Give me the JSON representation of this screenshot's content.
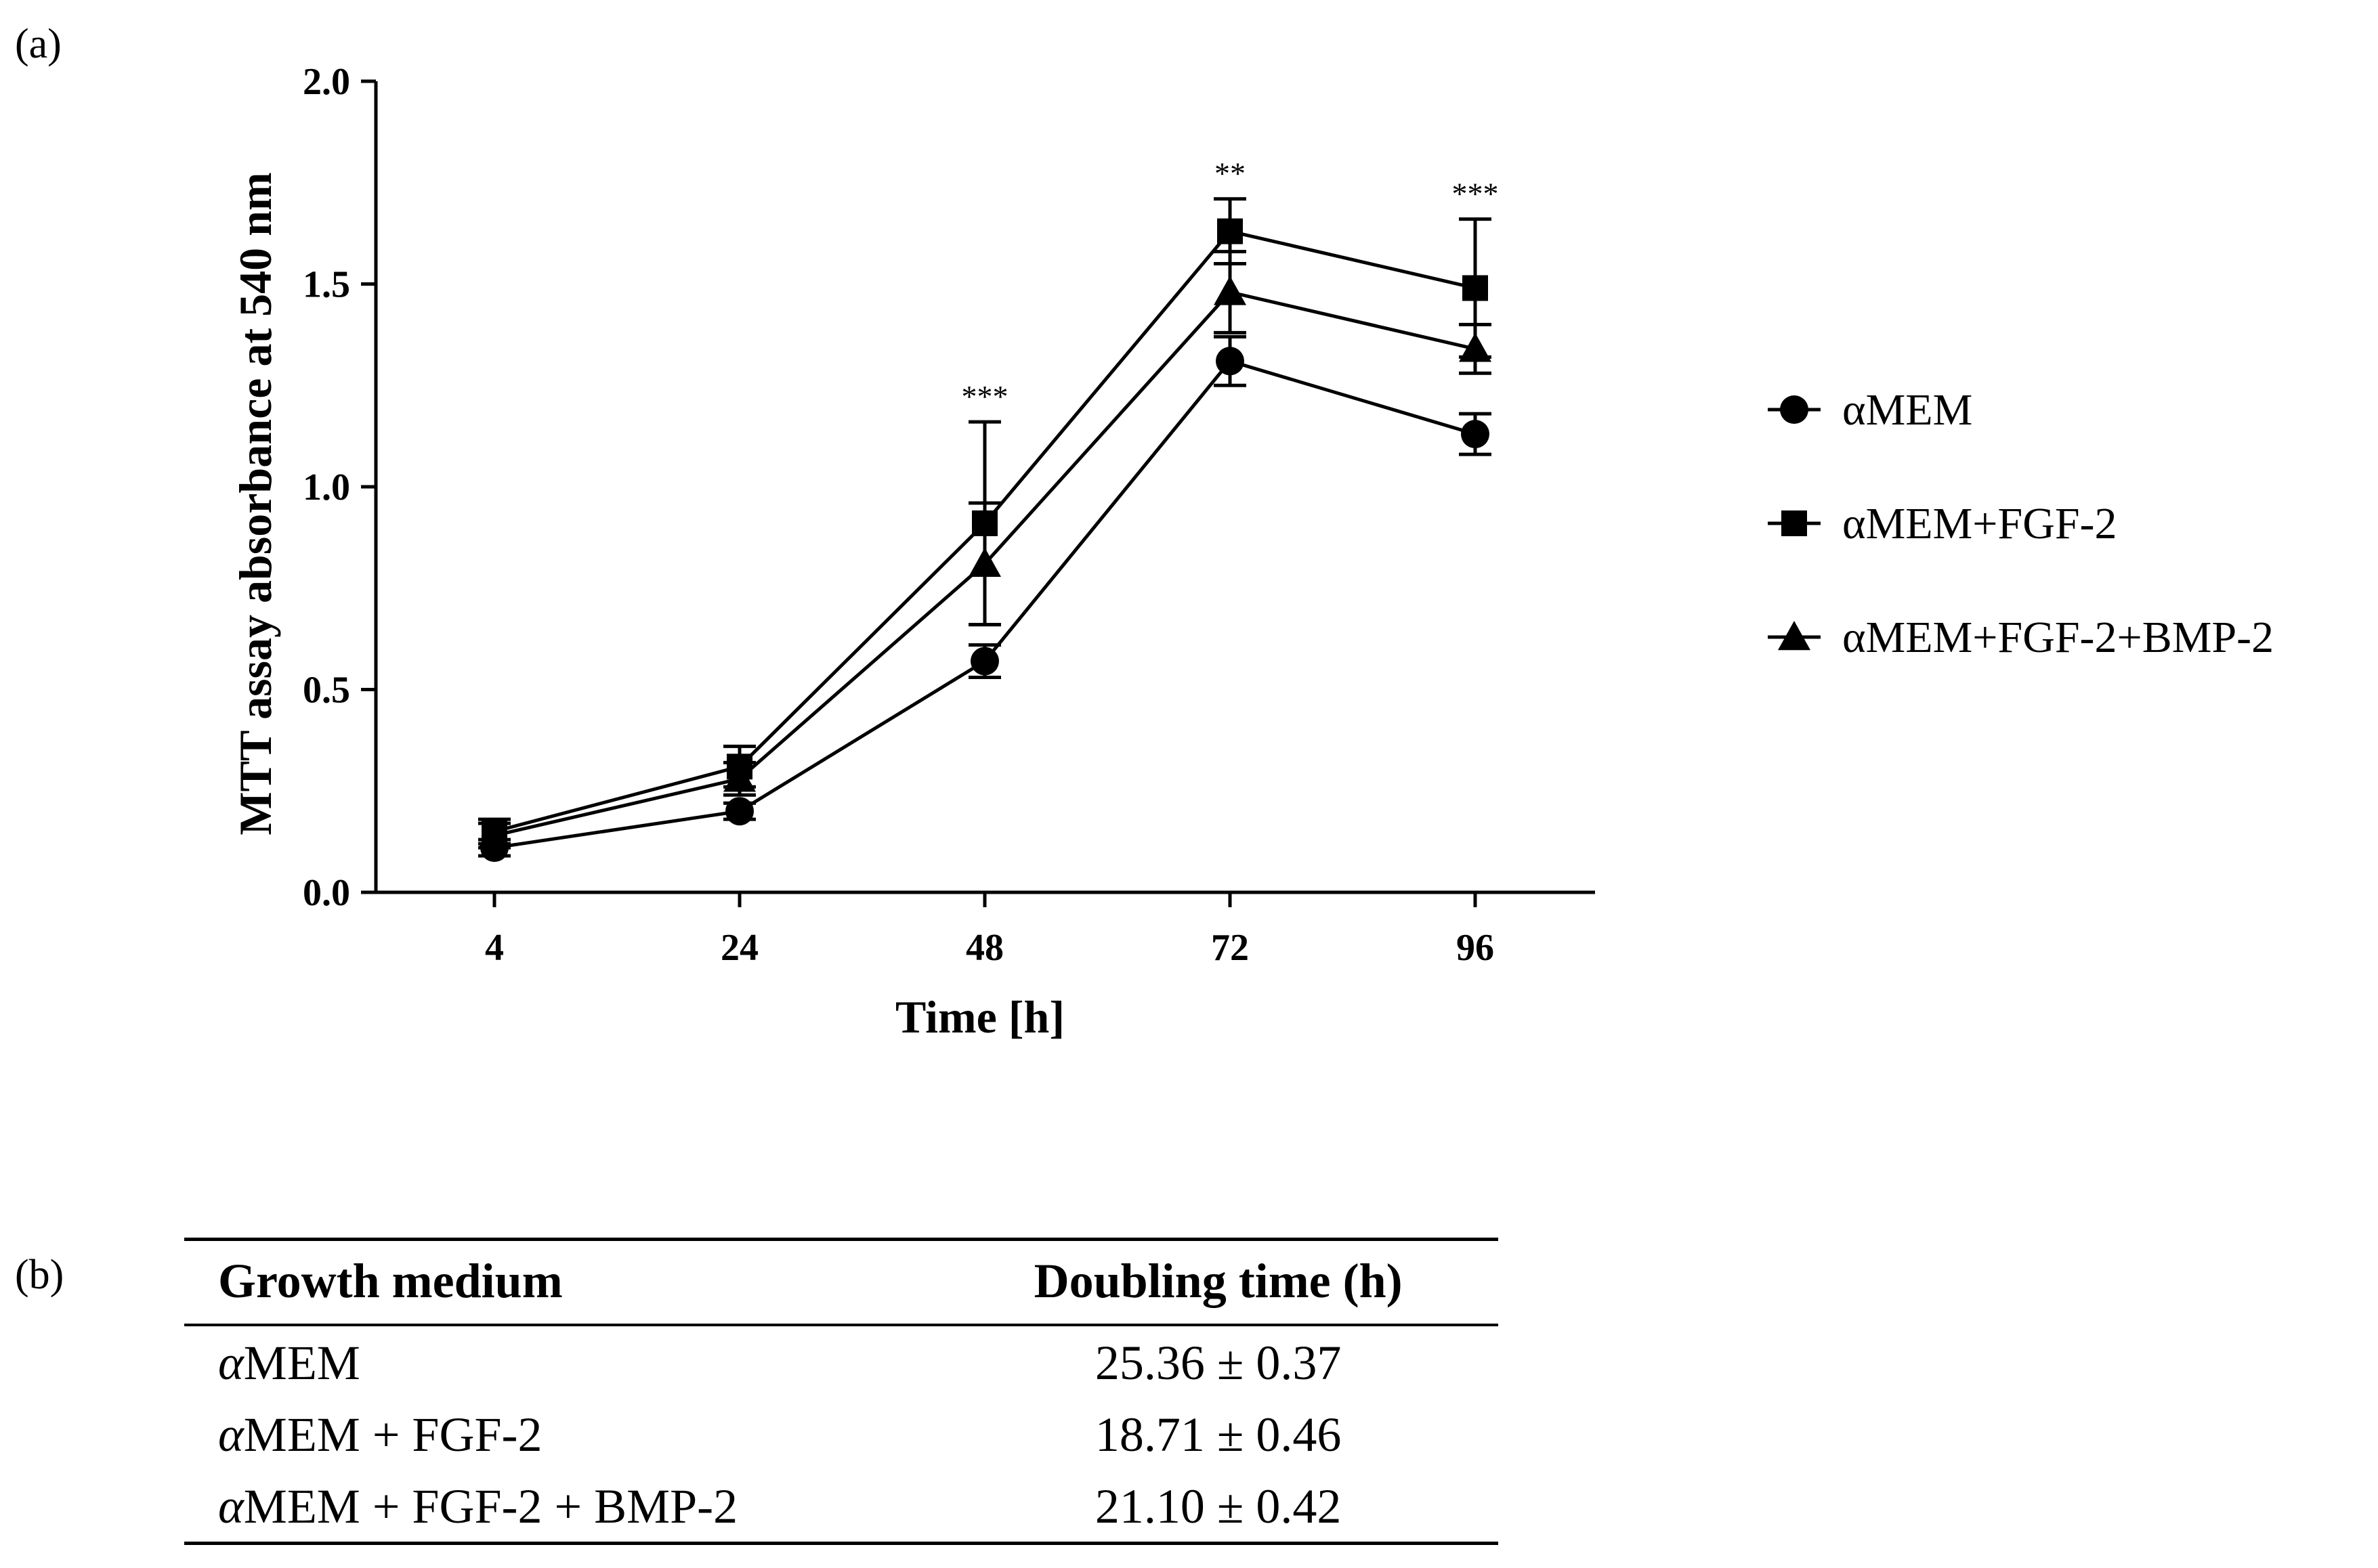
{
  "panel_a_label": "(a)",
  "panel_b_label": "(b)",
  "chart_data": {
    "type": "line",
    "title": "",
    "xlabel": "Time [h]",
    "ylabel": "MTT assay absorbance at 540 nm",
    "categories": [
      "4",
      "24",
      "48",
      "72",
      "96"
    ],
    "ylim": [
      0.0,
      2.0
    ],
    "yticks": [
      "0.0",
      "0.5",
      "1.0",
      "1.5",
      "2.0"
    ],
    "series": [
      {
        "name": "αMEM",
        "marker": "circle",
        "values": [
          0.11,
          0.2,
          0.57,
          1.31,
          1.13
        ],
        "errors": [
          0.02,
          0.02,
          0.04,
          0.06,
          0.05
        ]
      },
      {
        "name": "αMEM+FGF-2",
        "marker": "square",
        "values": [
          0.15,
          0.31,
          0.91,
          1.63,
          1.49
        ],
        "errors": [
          0.03,
          0.05,
          0.25,
          0.08,
          0.17
        ]
      },
      {
        "name": "αMEM+FGF-2+BMP-2",
        "marker": "triangle",
        "values": [
          0.14,
          0.28,
          0.81,
          1.48,
          1.34
        ],
        "errors": [
          0.03,
          0.04,
          0.15,
          0.1,
          0.06
        ]
      }
    ],
    "annotations": [
      {
        "x": "48",
        "text": "***"
      },
      {
        "x": "72",
        "text": "**"
      },
      {
        "x": "96",
        "text": "***"
      }
    ],
    "legend_position": "right"
  },
  "table": {
    "headers": [
      "Growth medium",
      "Doubling time (h)"
    ],
    "rows": [
      {
        "alpha": "α",
        "medium": "MEM",
        "value": "25.36 ± 0.37"
      },
      {
        "alpha": "α",
        "medium": "MEM + FGF-2",
        "value": "18.71 ± 0.46"
      },
      {
        "alpha": "α",
        "medium": "MEM + FGF-2 + BMP-2",
        "value": "21.10 ± 0.42"
      }
    ]
  }
}
